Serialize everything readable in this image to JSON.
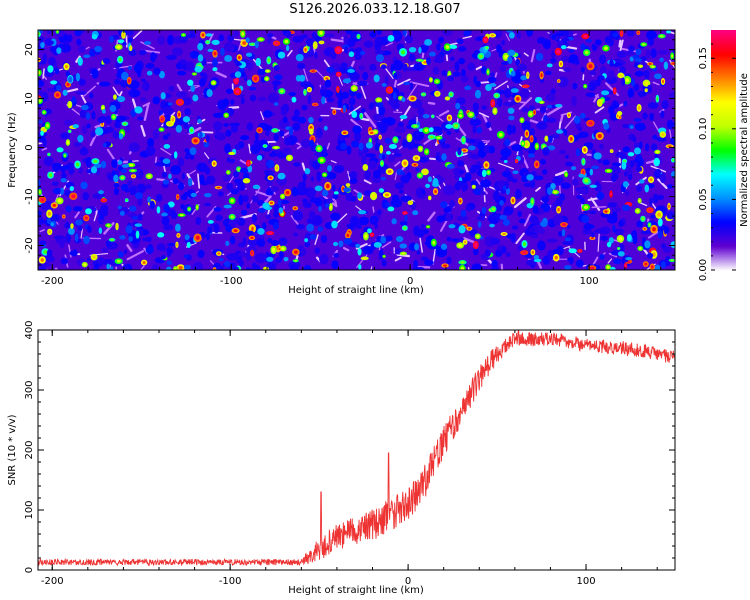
{
  "title": "S126.2026.033.12.18.G07",
  "chart_data": [
    {
      "type": "heatmap",
      "xlabel": "Height of straight line (km)",
      "ylabel": "Frequency (Hz)",
      "xlim": [
        -208,
        148
      ],
      "ylim": [
        -25,
        24
      ],
      "xticks": [
        -200,
        -100,
        0,
        100
      ],
      "yticks": [
        -20,
        -10,
        0,
        10,
        20
      ],
      "colorbar": {
        "label": "Normalized spectral amplitude",
        "range": [
          0,
          0.17
        ],
        "ticks": [
          "0.00",
          "0.05",
          "0.10",
          "0.15"
        ],
        "tick_values": [
          0,
          0.05,
          0.1,
          0.15
        ],
        "colors": [
          "#ffffff",
          "#6000d0",
          "#0000ff",
          "#0090ff",
          "#00ffff",
          "#00ff00",
          "#c0ff00",
          "#ffff00",
          "#ff8000",
          "#ff0000",
          "#ff0080"
        ]
      },
      "background_level": 0.02,
      "blob_level_range": [
        0.03,
        0.16
      ]
    },
    {
      "type": "line",
      "xlabel": "Height of straight line (km)",
      "ylabel": "SNR (10 * v/v)",
      "xlim": [
        -208,
        150
      ],
      "ylim": [
        0,
        400
      ],
      "xticks": [
        -200,
        -100,
        0,
        100
      ],
      "yticks": [
        0,
        100,
        200,
        300,
        400
      ],
      "color": "#ee3333",
      "trend_points": [
        {
          "x": -208,
          "y": 13
        },
        {
          "x": -60,
          "y": 13
        },
        {
          "x": -50,
          "y": 35
        },
        {
          "x": -40,
          "y": 55
        },
        {
          "x": -20,
          "y": 75
        },
        {
          "x": 0,
          "y": 110
        },
        {
          "x": 10,
          "y": 150
        },
        {
          "x": 20,
          "y": 215
        },
        {
          "x": 30,
          "y": 265
        },
        {
          "x": 40,
          "y": 320
        },
        {
          "x": 50,
          "y": 360
        },
        {
          "x": 60,
          "y": 385
        },
        {
          "x": 80,
          "y": 385
        },
        {
          "x": 100,
          "y": 375
        },
        {
          "x": 120,
          "y": 370
        },
        {
          "x": 150,
          "y": 355
        }
      ],
      "noise_amplitude": [
        {
          "x": -208,
          "a": 5
        },
        {
          "x": -60,
          "a": 5
        },
        {
          "x": -50,
          "a": 20
        },
        {
          "x": 0,
          "a": 30
        },
        {
          "x": 40,
          "a": 22
        },
        {
          "x": 60,
          "a": 12
        },
        {
          "x": 150,
          "a": 12
        }
      ],
      "peaks": [
        {
          "x": -49,
          "y": 130
        },
        {
          "x": -11,
          "y": 195
        },
        {
          "x": 62,
          "y": 400
        }
      ]
    }
  ]
}
